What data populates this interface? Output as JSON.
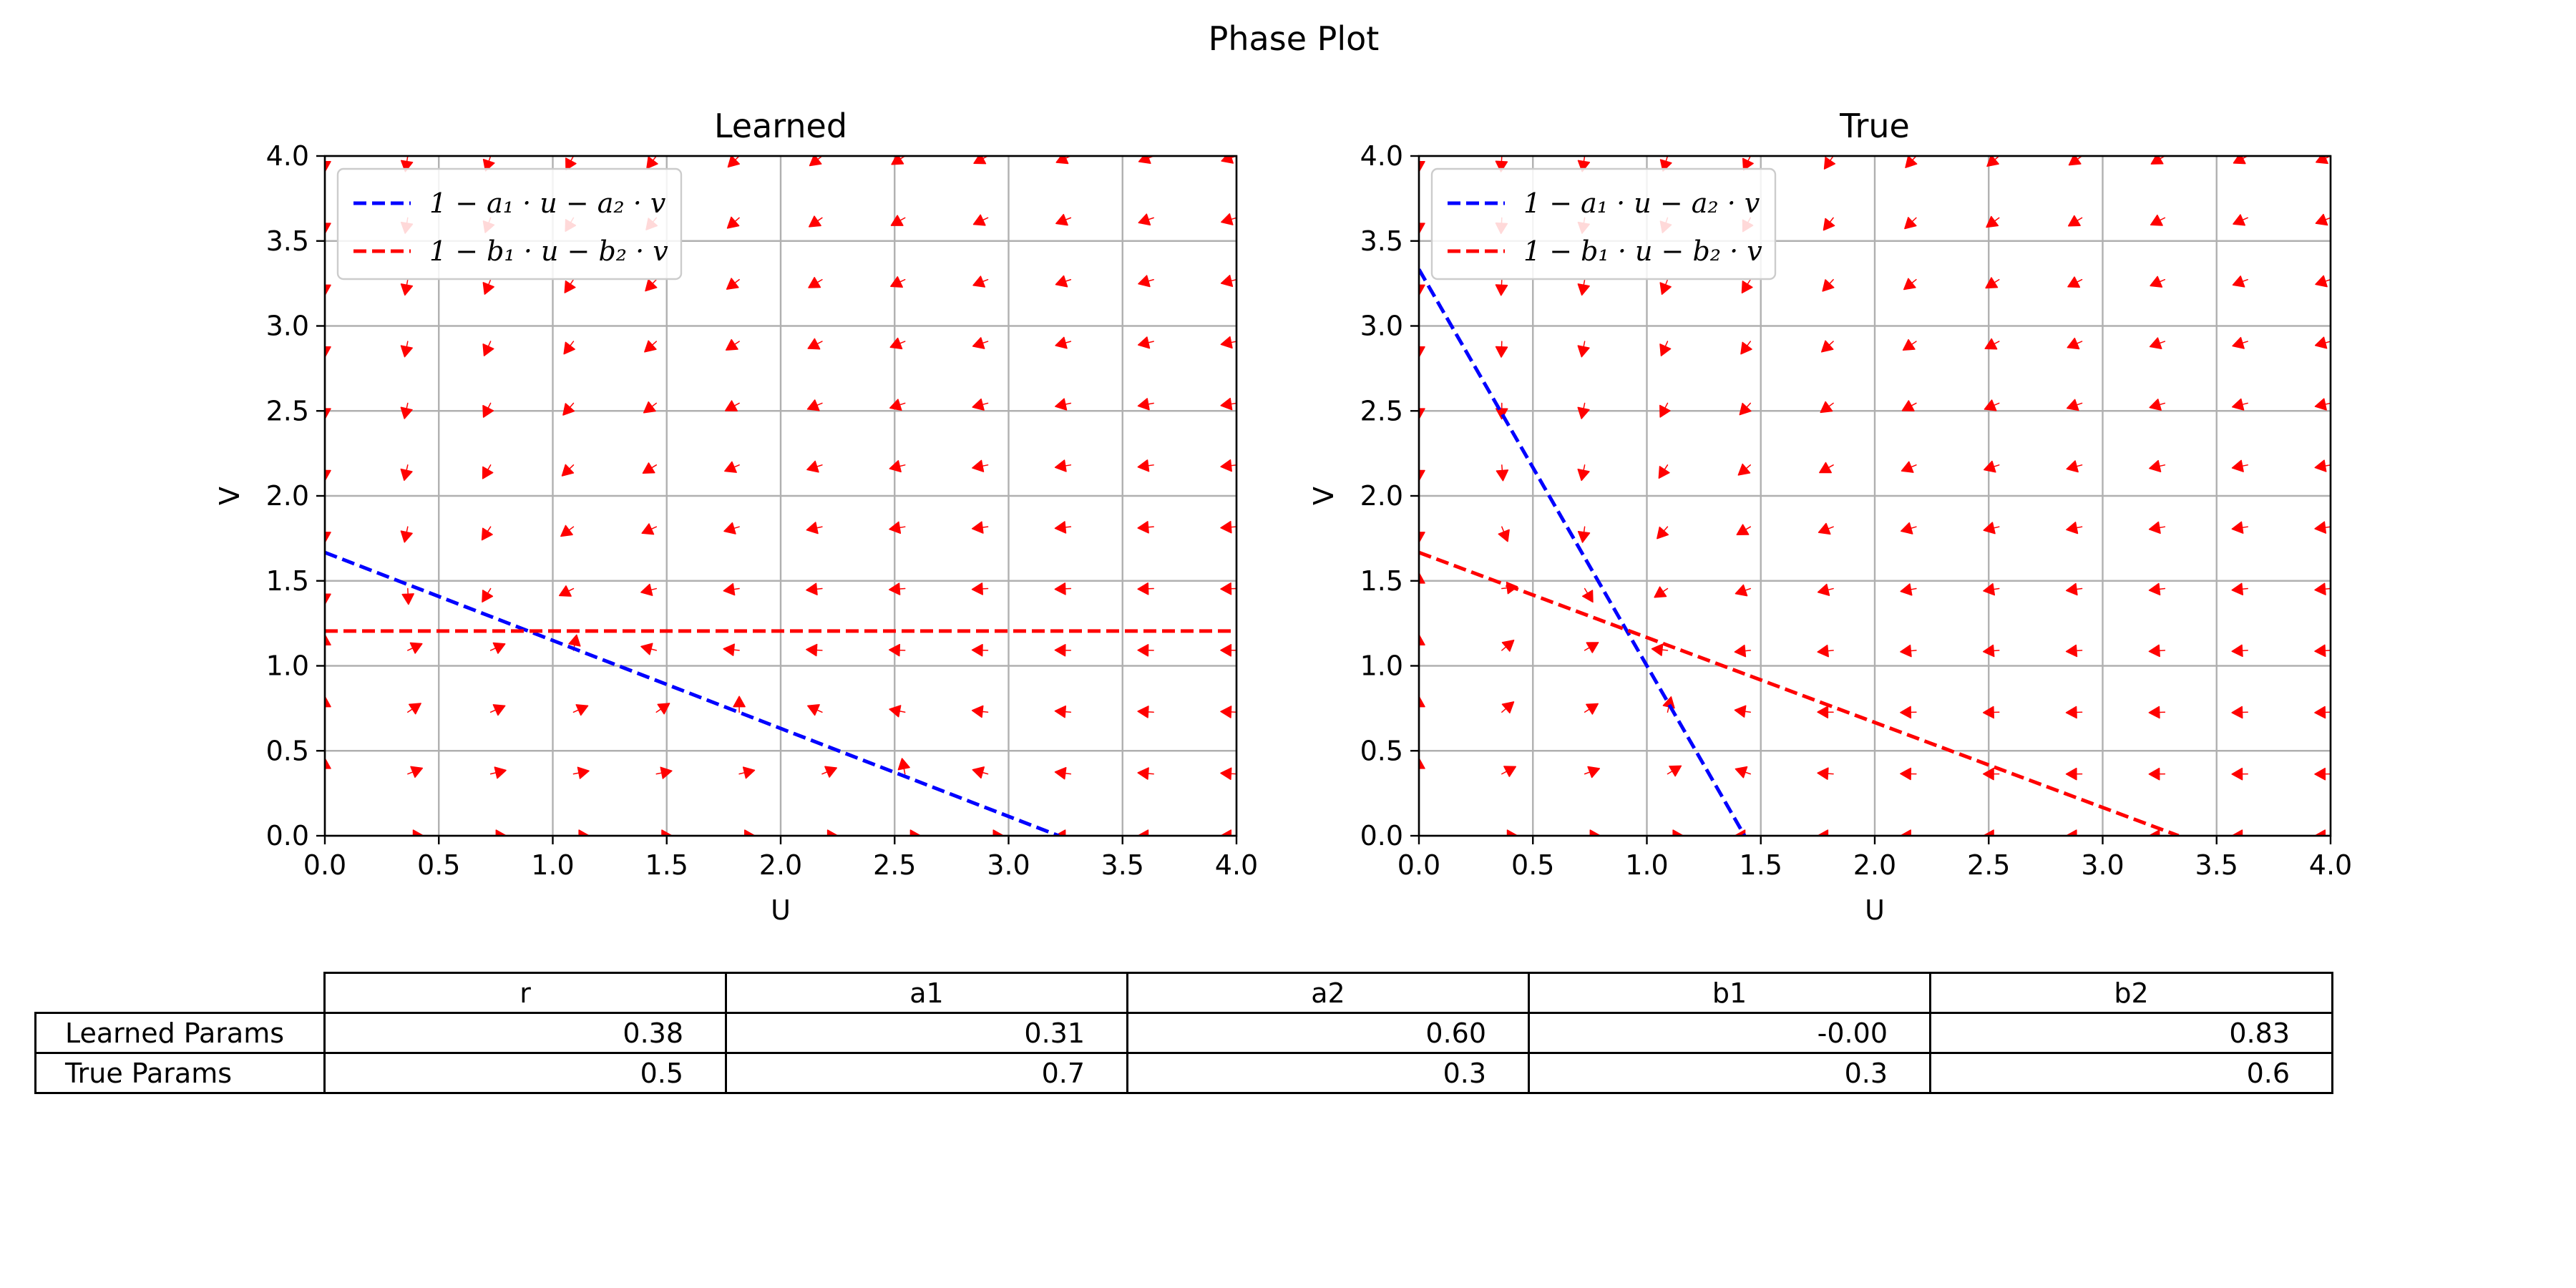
{
  "figure": {
    "title": "Phase Plot",
    "colors": {
      "nullcline_u": "#0000ff",
      "nullcline_v": "#ff0000",
      "arrows": "#ff0000",
      "grid": "#b0b0b0"
    }
  },
  "chart_data": [
    {
      "type": "line",
      "title": "Learned",
      "xlabel": "U",
      "ylabel": "V",
      "xlim": [
        0,
        4
      ],
      "ylim": [
        0,
        4
      ],
      "xticks": [
        "0.0",
        "0.5",
        "1.0",
        "1.5",
        "2.0",
        "2.5",
        "3.0",
        "3.5",
        "4.0"
      ],
      "yticks": [
        "0.0",
        "0.5",
        "1.0",
        "1.5",
        "2.0",
        "2.5",
        "3.0",
        "3.5",
        "4.0"
      ],
      "grid": true,
      "legend": "top-left",
      "legend_entries": [
        "1 − a₁ · u − a₂ · v",
        "1 − b₁ · u − b₂ · v"
      ],
      "params": {
        "r": 0.38,
        "a1": 0.31,
        "a2": 0.6,
        "b1": 0.0,
        "b2": 0.83
      },
      "series": [
        {
          "style": "dashed",
          "color": "#0000ff",
          "x": [
            0,
            3.22
          ],
          "y": [
            1.667,
            0
          ]
        },
        {
          "style": "dashed",
          "color": "#ff0000",
          "x": [
            0,
            4
          ],
          "y": [
            1.205,
            1.205
          ]
        }
      ],
      "vector_field": {
        "grid_min": 0,
        "grid_max": 4,
        "grid_count": 12,
        "color": "#ff0000"
      }
    },
    {
      "type": "line",
      "title": "True",
      "xlabel": "U",
      "ylabel": "V",
      "xlim": [
        0,
        4
      ],
      "ylim": [
        0,
        4
      ],
      "xticks": [
        "0.0",
        "0.5",
        "1.0",
        "1.5",
        "2.0",
        "2.5",
        "3.0",
        "3.5",
        "4.0"
      ],
      "yticks": [
        "0.0",
        "0.5",
        "1.0",
        "1.5",
        "2.0",
        "2.5",
        "3.0",
        "3.5",
        "4.0"
      ],
      "grid": true,
      "legend": "top-left",
      "legend_entries": [
        "1 − a₁ · u − a₂ · v",
        "1 − b₁ · u − b₂ · v"
      ],
      "params": {
        "r": 0.5,
        "a1": 0.7,
        "a2": 0.3,
        "b1": 0.3,
        "b2": 0.6
      },
      "series": [
        {
          "style": "dashed",
          "color": "#0000ff",
          "x": [
            0,
            1.429
          ],
          "y": [
            3.333,
            0
          ]
        },
        {
          "style": "dashed",
          "color": "#ff0000",
          "x": [
            0,
            3.333
          ],
          "y": [
            1.667,
            0
          ]
        }
      ],
      "vector_field": {
        "grid_min": 0,
        "grid_max": 4,
        "grid_count": 12,
        "color": "#ff0000"
      }
    }
  ],
  "table": {
    "columns": [
      "r",
      "a1",
      "a2",
      "b1",
      "b2"
    ],
    "rows": [
      {
        "label": "Learned Params",
        "values": [
          "0.38",
          "0.31",
          "0.60",
          "-0.00",
          "0.83"
        ]
      },
      {
        "label": "True Params",
        "values": [
          "0.5",
          "0.7",
          "0.3",
          "0.3",
          "0.6"
        ]
      }
    ]
  }
}
